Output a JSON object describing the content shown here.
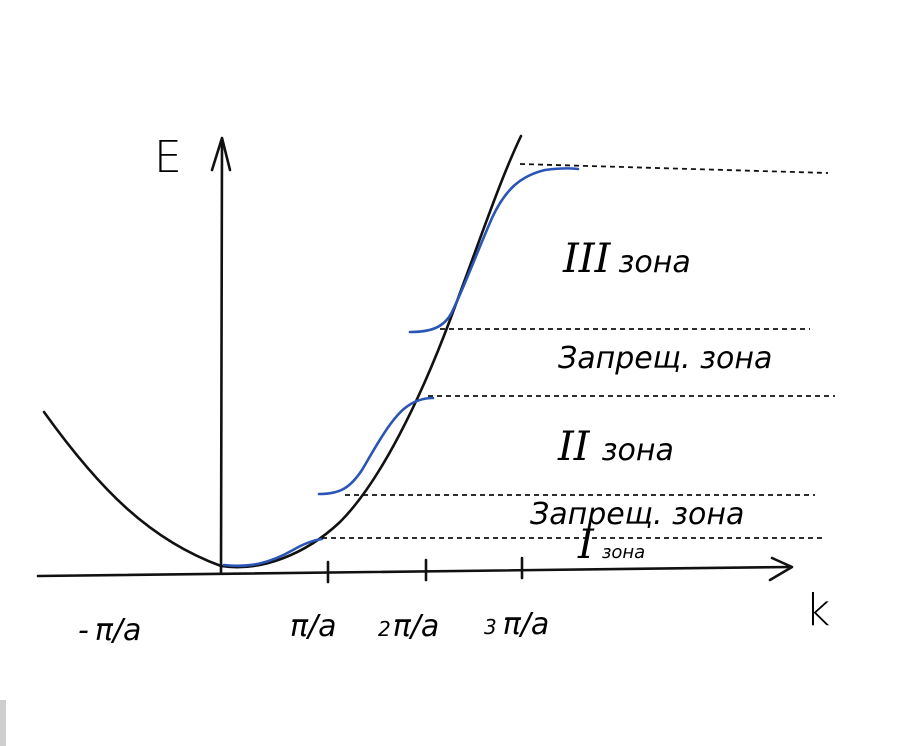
{
  "axes": {
    "y_label": "E",
    "x_label": "k"
  },
  "ticks": [
    {
      "prefix": "-",
      "num": "",
      "label": "π/a"
    },
    {
      "prefix": "",
      "num": "",
      "label": "π/a"
    },
    {
      "prefix": "",
      "num": "2",
      "label": "π/a"
    },
    {
      "prefix": "",
      "num": "3",
      "label": "π/a"
    }
  ],
  "zones": {
    "zone1": {
      "roman": "I",
      "word": "зона"
    },
    "gap1": "Запрещ. зона",
    "zone2": {
      "roman": "II",
      "word": "зона"
    },
    "gap2": "Запрещ. зона",
    "zone3": {
      "roman": "III",
      "word": "зона"
    }
  },
  "colors": {
    "free_electron_curve": "#111111",
    "band_curve": "#2a55b6"
  }
}
